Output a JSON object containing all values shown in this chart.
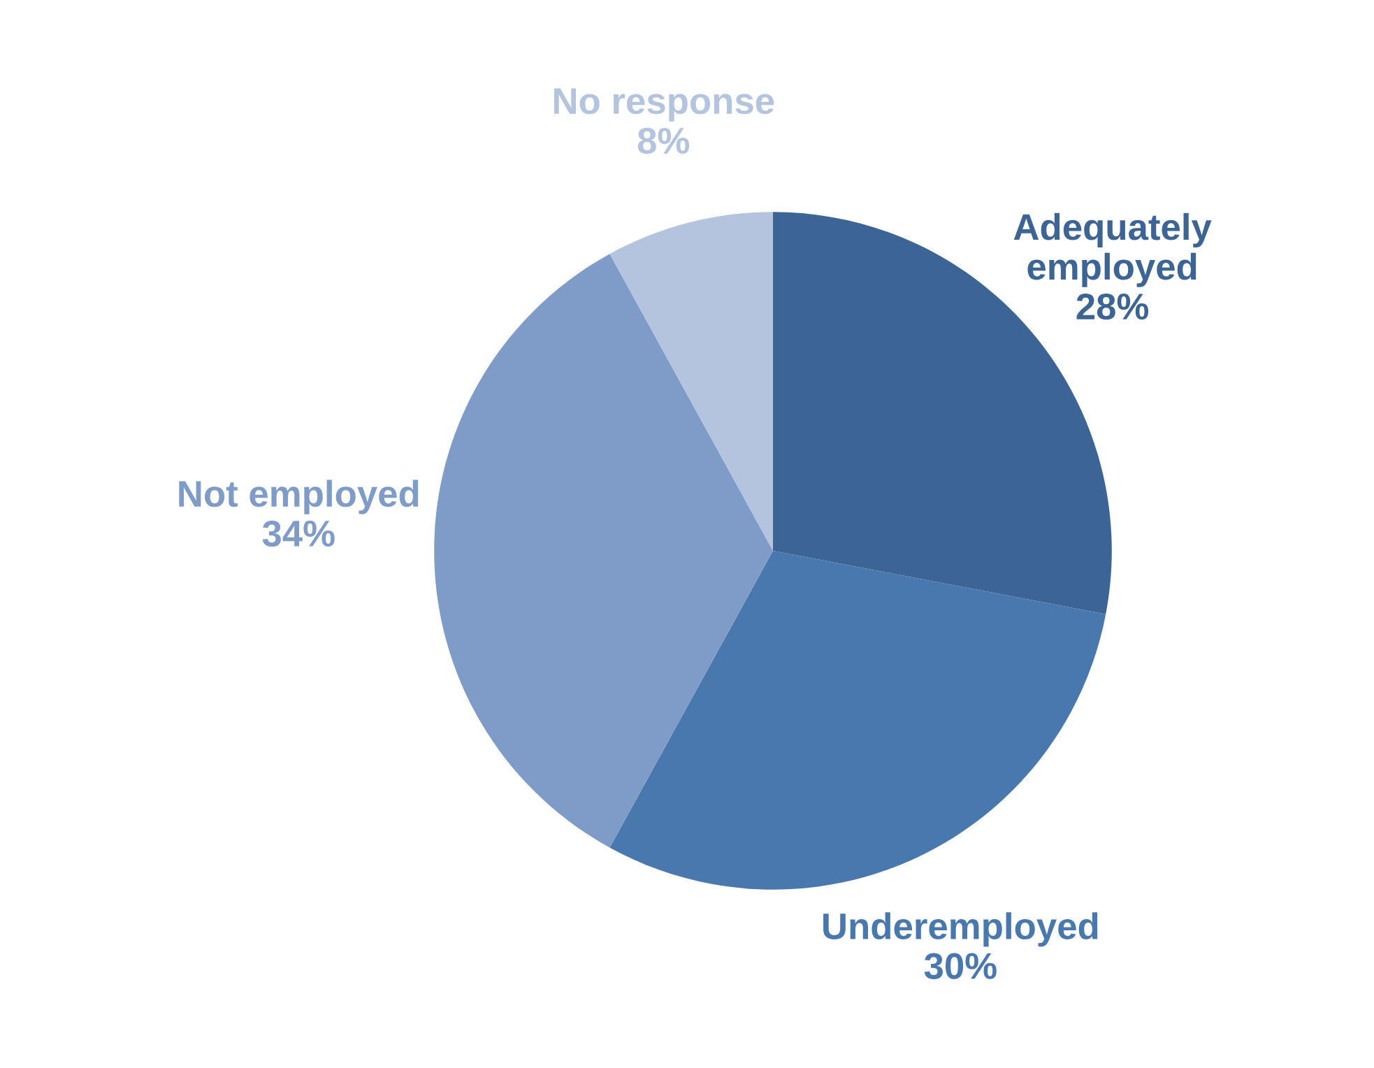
{
  "chart_data": {
    "type": "pie",
    "categories": [
      "Adequately\nemployed",
      "Underemployed",
      "Not employed",
      "No response"
    ],
    "values": [
      28,
      30,
      34,
      8
    ],
    "value_labels": [
      "28%",
      "30%",
      "34%",
      "8%"
    ],
    "colors": [
      "#3c6495",
      "#4878ae",
      "#7f9bc7",
      "#b4c3de"
    ],
    "legend": false
  }
}
